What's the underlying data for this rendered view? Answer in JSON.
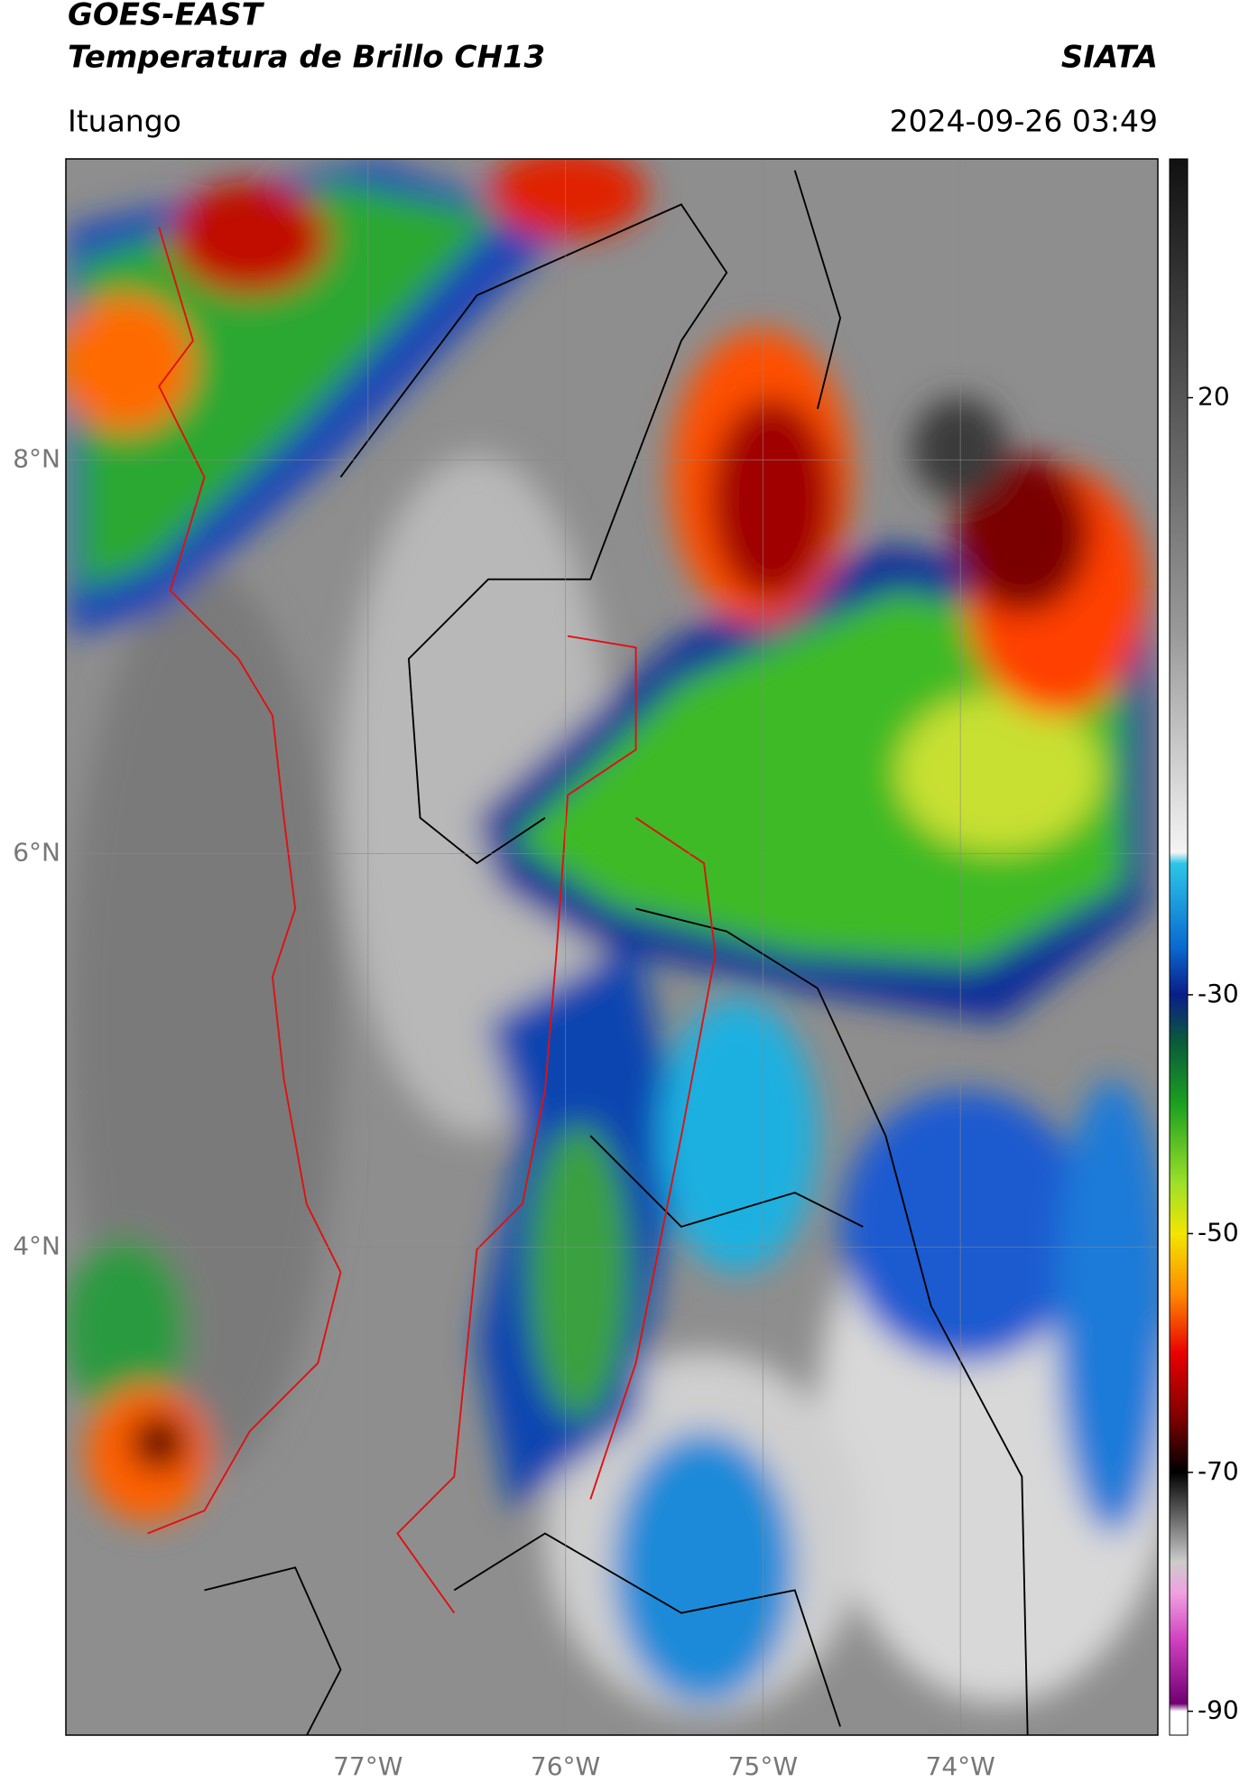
{
  "header": {
    "title": "GOES-EAST",
    "subtitle": "Temperatura de Brillo CH13",
    "source": "SIATA",
    "location": "Ituango",
    "timestamp": "2024-09-26 03:49"
  },
  "map": {
    "lonlim": [
      -78.53,
      -73.0
    ],
    "latlim": [
      1.52,
      9.53
    ],
    "lonticks": [
      {
        "value": -77,
        "label": "77°W"
      },
      {
        "value": -76,
        "label": "76°W"
      },
      {
        "value": -75,
        "label": "75°W"
      },
      {
        "value": -74,
        "label": "74°W"
      }
    ],
    "latticks": [
      {
        "value": 8,
        "label": "8°N"
      },
      {
        "value": 6,
        "label": "6°N"
      },
      {
        "value": 4,
        "label": "4°N"
      }
    ]
  },
  "colorbar": {
    "lim": [
      -92,
      40
    ],
    "ticks": [
      20,
      -30,
      -50,
      -70,
      -90
    ]
  }
}
